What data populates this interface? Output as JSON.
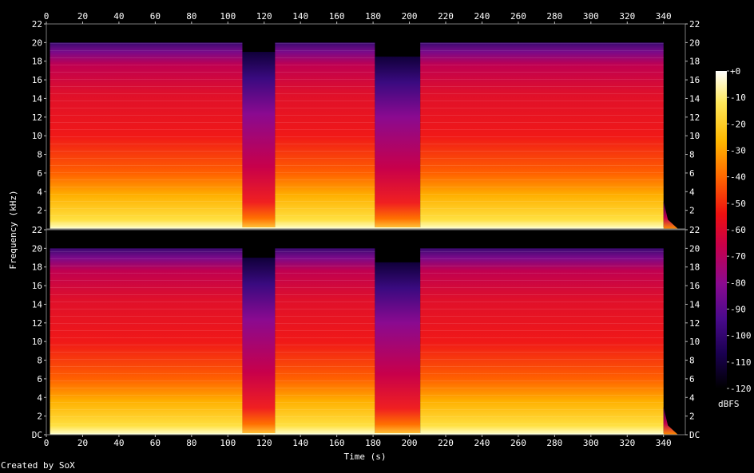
{
  "chart_data": {
    "type": "heatmap",
    "title": "",
    "xlabel": "Time (s)",
    "ylabel": "Frequency (kHz)",
    "xlim": [
      0,
      352
    ],
    "ylim": [
      0,
      22
    ],
    "x_ticks": [
      0,
      20,
      40,
      60,
      80,
      100,
      120,
      140,
      160,
      180,
      200,
      220,
      240,
      260,
      280,
      300,
      320,
      340
    ],
    "y_tick_labels": [
      "DC",
      "2",
      "4",
      "6",
      "8",
      "10",
      "12",
      "14",
      "16",
      "18",
      "20",
      "22"
    ],
    "channels": [
      "channel-1",
      "channel-2"
    ],
    "colorbar": {
      "label": "dBFS",
      "range": [
        -120,
        0
      ],
      "tick_labels": [
        "+0",
        "-10",
        "-20",
        "-30",
        "-40",
        "-50",
        "-60",
        "-70",
        "-80",
        "-90",
        "-100",
        "-110",
        "-120"
      ],
      "colors": [
        "#000000",
        "#1a0050",
        "#4a0a8c",
        "#8a0a90",
        "#c8004a",
        "#ee1010",
        "#ff6a00",
        "#ffb800",
        "#ffe85a",
        "#ffffff"
      ]
    },
    "segments": [
      {
        "start": 2,
        "end": 108,
        "level": "loud",
        "bandwidth_khz": 20
      },
      {
        "start": 108,
        "end": 126,
        "level": "quiet",
        "bandwidth_khz": 19
      },
      {
        "start": 126,
        "end": 181,
        "level": "loud",
        "bandwidth_khz": 20
      },
      {
        "start": 181,
        "end": 206,
        "level": "quiet",
        "bandwidth_khz": 18.5
      },
      {
        "start": 206,
        "end": 340,
        "level": "loud",
        "bandwidth_khz": 20
      },
      {
        "start": 340,
        "end": 348,
        "level": "fade",
        "bandwidth_khz": 3
      }
    ]
  },
  "footer": "Created by SoX"
}
